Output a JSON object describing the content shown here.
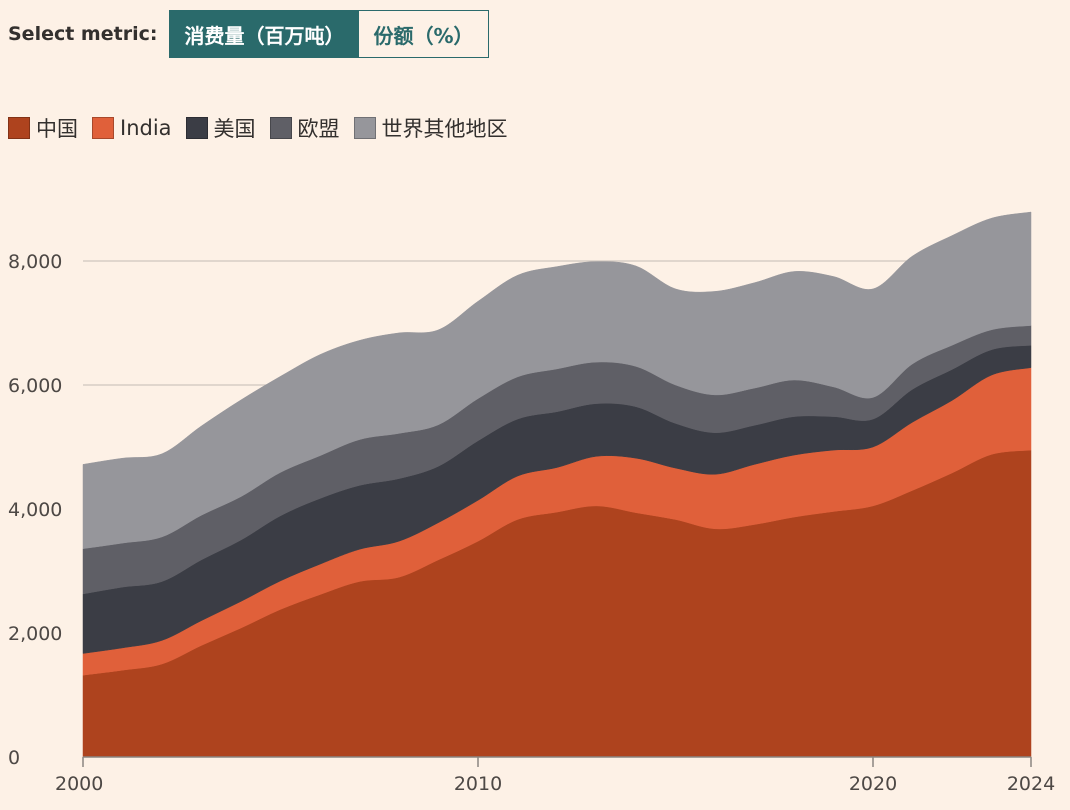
{
  "controls": {
    "label": "Select metric:",
    "options": [
      {
        "label": "消费量（百万吨）",
        "active": true
      },
      {
        "label": "份额（%）",
        "active": false
      }
    ]
  },
  "colors": {
    "background": "#FDF1E6",
    "accent": "#2A6A6B",
    "gridline": "#CFC6BE",
    "axis": "#8A8580"
  },
  "chart_data": {
    "type": "area",
    "stacked": true,
    "title": "",
    "xlabel": "",
    "ylabel": "",
    "xlim": [
      2000,
      2024
    ],
    "ylim": [
      0,
      8000
    ],
    "x_ticks": [
      {
        "value": 2000,
        "label": "2000"
      },
      {
        "value": 2010,
        "label": "2010"
      },
      {
        "value": 2020,
        "label": "2020"
      },
      {
        "value": 2024,
        "label": "2024"
      }
    ],
    "y_ticks": [
      {
        "value": 0,
        "label": "0"
      },
      {
        "value": 2000,
        "label": "2,000"
      },
      {
        "value": 4000,
        "label": "4,000"
      },
      {
        "value": 6000,
        "label": "6,000"
      },
      {
        "value": 8000,
        "label": "8,000"
      }
    ],
    "grid": true,
    "legend_position": "top-left",
    "x": [
      2000,
      2001,
      2002,
      2003,
      2004,
      2005,
      2006,
      2007,
      2008,
      2009,
      2010,
      2011,
      2012,
      2013,
      2014,
      2015,
      2016,
      2017,
      2018,
      2019,
      2020,
      2021,
      2022,
      2023,
      2024
    ],
    "series": [
      {
        "name": "中国",
        "color": "#AE431E",
        "values": [
          1320,
          1400,
          1500,
          1800,
          2080,
          2380,
          2620,
          2830,
          2900,
          3180,
          3480,
          3830,
          3950,
          4050,
          3940,
          3830,
          3680,
          3750,
          3870,
          3960,
          4050,
          4300,
          4580,
          4880,
          4950
        ]
      },
      {
        "name": "India",
        "color": "#E0603A",
        "values": [
          350,
          360,
          380,
          400,
          430,
          460,
          490,
          520,
          580,
          600,
          660,
          700,
          720,
          800,
          880,
          830,
          880,
          970,
          1000,
          990,
          950,
          1100,
          1170,
          1280,
          1330
        ]
      },
      {
        "name": "美国",
        "color": "#3B3D45",
        "values": [
          960,
          980,
          950,
          980,
          990,
          1050,
          1060,
          1030,
          1010,
          910,
          960,
          920,
          900,
          850,
          830,
          720,
          670,
          630,
          620,
          540,
          450,
          530,
          500,
          410,
          360
        ]
      },
      {
        "name": "欧盟",
        "color": "#5F5F66",
        "values": [
          730,
          710,
          720,
          720,
          700,
          700,
          690,
          740,
          730,
          670,
          680,
          680,
          690,
          670,
          650,
          620,
          610,
          600,
          590,
          480,
          350,
          410,
          390,
          320,
          320
        ]
      },
      {
        "name": "世界其他地区",
        "color": "#96969B",
        "values": [
          1360,
          1370,
          1340,
          1440,
          1560,
          1550,
          1630,
          1600,
          1620,
          1530,
          1570,
          1640,
          1650,
          1620,
          1620,
          1550,
          1670,
          1700,
          1750,
          1780,
          1750,
          1740,
          1770,
          1800,
          1830
        ]
      }
    ]
  }
}
